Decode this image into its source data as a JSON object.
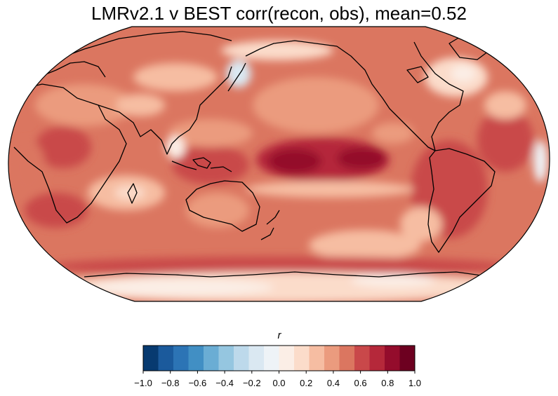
{
  "title": "LMRv2.1 v BEST corr(recon, obs), mean=0.52",
  "colorbar": {
    "label": "r",
    "ticks": [
      "−1.0",
      "−0.8",
      "−0.6",
      "−0.4",
      "−0.2",
      "0.0",
      "0.2",
      "0.4",
      "0.6",
      "0.8",
      "1.0"
    ],
    "range": [
      -1.0,
      1.0
    ],
    "colors": [
      "#073a70",
      "#1b5a9c",
      "#2c74b5",
      "#418fc4",
      "#6aadd4",
      "#95c6e0",
      "#bdd9eb",
      "#dae8f2",
      "#eef3f7",
      "#fbeee6",
      "#fbdcca",
      "#f6bda2",
      "#eb9b7e",
      "#db7660",
      "#c9484a",
      "#b5283a",
      "#940c2c",
      "#6d0020"
    ]
  },
  "map": {
    "projection": "Robinson",
    "variable": "r"
  }
}
